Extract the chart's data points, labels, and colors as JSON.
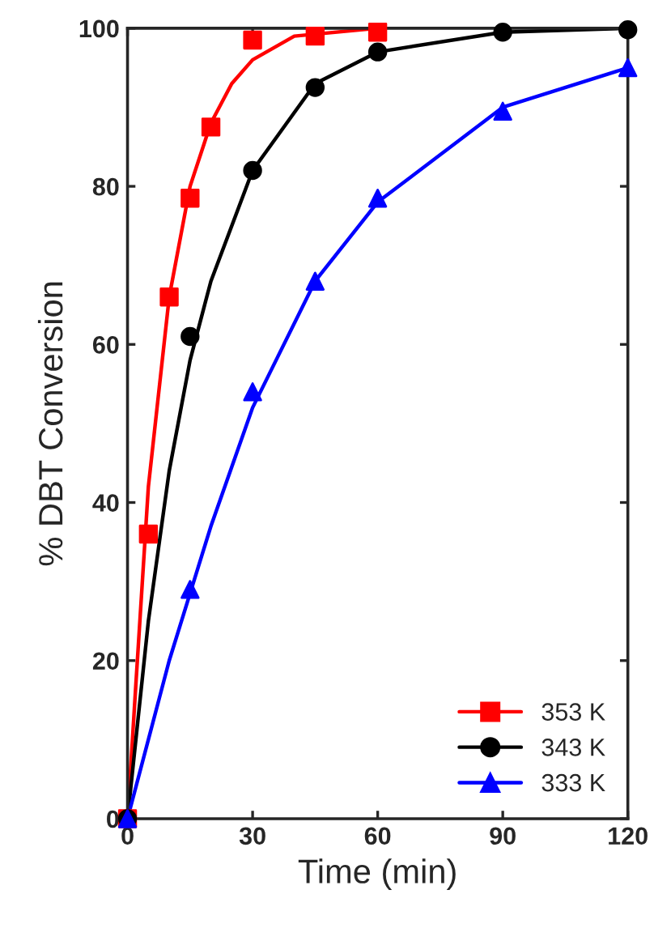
{
  "chart_data": {
    "type": "scatter",
    "xlabel": "Time (min)",
    "ylabel": "% DBT Conversion",
    "xlim": [
      0,
      120
    ],
    "ylim": [
      0,
      100
    ],
    "xticks": [
      0,
      30,
      60,
      90,
      120
    ],
    "yticks": [
      0,
      20,
      40,
      60,
      80,
      100
    ],
    "grid": false,
    "legend": "bottom right",
    "series": [
      {
        "name": "353 K",
        "color": "#ff0000",
        "marker": "square",
        "x": [
          0,
          5,
          10,
          15,
          20,
          30,
          45,
          60
        ],
        "values": [
          0,
          36,
          66,
          78.5,
          87.5,
          98.5,
          99,
          99.5
        ]
      },
      {
        "name": "343 K",
        "color": "#000000",
        "marker": "circle",
        "x": [
          0,
          15,
          30,
          45,
          60,
          90,
          120
        ],
        "values": [
          0,
          61,
          82,
          92.5,
          97,
          99.5,
          99.8
        ]
      },
      {
        "name": "333 K",
        "color": "#0000ff",
        "marker": "triangle",
        "x": [
          0,
          15,
          30,
          45,
          60,
          90,
          120
        ],
        "values": [
          0,
          29,
          54,
          68,
          78.5,
          89.5,
          95
        ]
      },
      {
        "type": "line",
        "color": "#ff0000",
        "x": [
          0,
          2,
          5,
          10,
          15,
          20,
          25,
          30,
          40,
          60
        ],
        "values": [
          0,
          17,
          42,
          66,
          80,
          88,
          93,
          96,
          99,
          100
        ]
      },
      {
        "type": "line",
        "color": "#000000",
        "x": [
          0,
          5,
          10,
          15,
          20,
          30,
          45,
          60,
          90,
          120
        ],
        "values": [
          0,
          25,
          44,
          58,
          68,
          82,
          93,
          97,
          99.5,
          100
        ]
      },
      {
        "type": "line",
        "color": "#0000ff",
        "x": [
          0,
          10,
          20,
          30,
          45,
          60,
          90,
          120
        ],
        "values": [
          0,
          20,
          37,
          52,
          68,
          78,
          90,
          95
        ]
      }
    ]
  }
}
